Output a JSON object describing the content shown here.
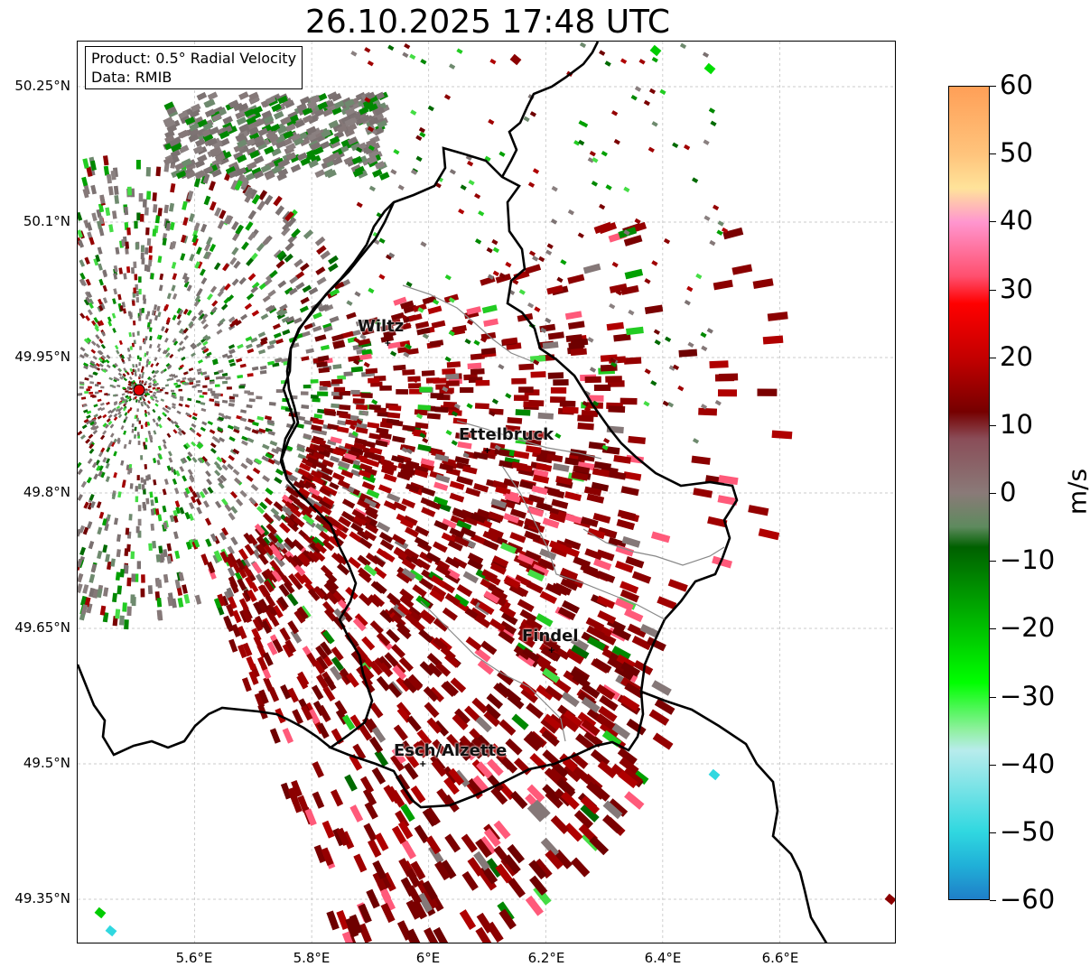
{
  "title": "26.10.2025 17:48 UTC",
  "info_box": {
    "product": "Product: 0.5° Radial Velocity",
    "data": "Data: RMIB"
  },
  "axes": {
    "y_ticks": [
      "50.25°N",
      "50.1°N",
      "49.95°N",
      "49.8°N",
      "49.65°N",
      "49.5°N",
      "49.35°N"
    ],
    "x_ticks": [
      "5.6°E",
      "5.8°E",
      "6°E",
      "6.2°E",
      "6.4°E",
      "6.6°E"
    ],
    "lon_range": [
      5.4,
      6.8
    ],
    "lat_range": [
      49.3,
      50.3
    ],
    "grid": true
  },
  "cities": [
    {
      "name": "Wiltz",
      "lon": 5.93,
      "lat": 49.966
    },
    {
      "name": "Ettelbruck",
      "lon": 6.1,
      "lat": 49.847
    },
    {
      "name": "Findel",
      "lon": 6.21,
      "lat": 49.626
    },
    {
      "name": "Esch/Alzette",
      "lon": 5.99,
      "lat": 49.5
    }
  ],
  "radar_site": {
    "lon": 5.505,
    "lat": 49.914,
    "color": "#e00000"
  },
  "colorbar": {
    "label": "m/s",
    "range": [
      -60,
      60
    ],
    "ticks": [
      "60",
      "50",
      "40",
      "30",
      "20",
      "10",
      "0",
      "−10",
      "−20",
      "−30",
      "−40",
      "−50",
      "−60"
    ],
    "stops": [
      {
        "v": 60,
        "color": "#ff9f57"
      },
      {
        "v": 50,
        "color": "#ffc47c"
      },
      {
        "v": 45,
        "color": "#ffe39a"
      },
      {
        "v": 40,
        "color": "#ff96cf"
      },
      {
        "v": 32,
        "color": "#ff4f6e"
      },
      {
        "v": 28,
        "color": "#ff0000"
      },
      {
        "v": 20,
        "color": "#c40000"
      },
      {
        "v": 12,
        "color": "#760000"
      },
      {
        "v": 8,
        "color": "#8a4d58"
      },
      {
        "v": 0,
        "color": "#8a7a78"
      },
      {
        "v": -5,
        "color": "#5e8a5e"
      },
      {
        "v": -8,
        "color": "#006000"
      },
      {
        "v": -18,
        "color": "#00b000"
      },
      {
        "v": -28,
        "color": "#00ff00"
      },
      {
        "v": -35,
        "color": "#90f0a0"
      },
      {
        "v": -38,
        "color": "#b8ecec"
      },
      {
        "v": -50,
        "color": "#30d8e0"
      },
      {
        "v": -55,
        "color": "#20b0d8"
      },
      {
        "v": -60,
        "color": "#1f7fc8"
      }
    ]
  },
  "colors": {
    "border": "#000000",
    "canton": "#888888",
    "grid": "#bbbbbb"
  }
}
